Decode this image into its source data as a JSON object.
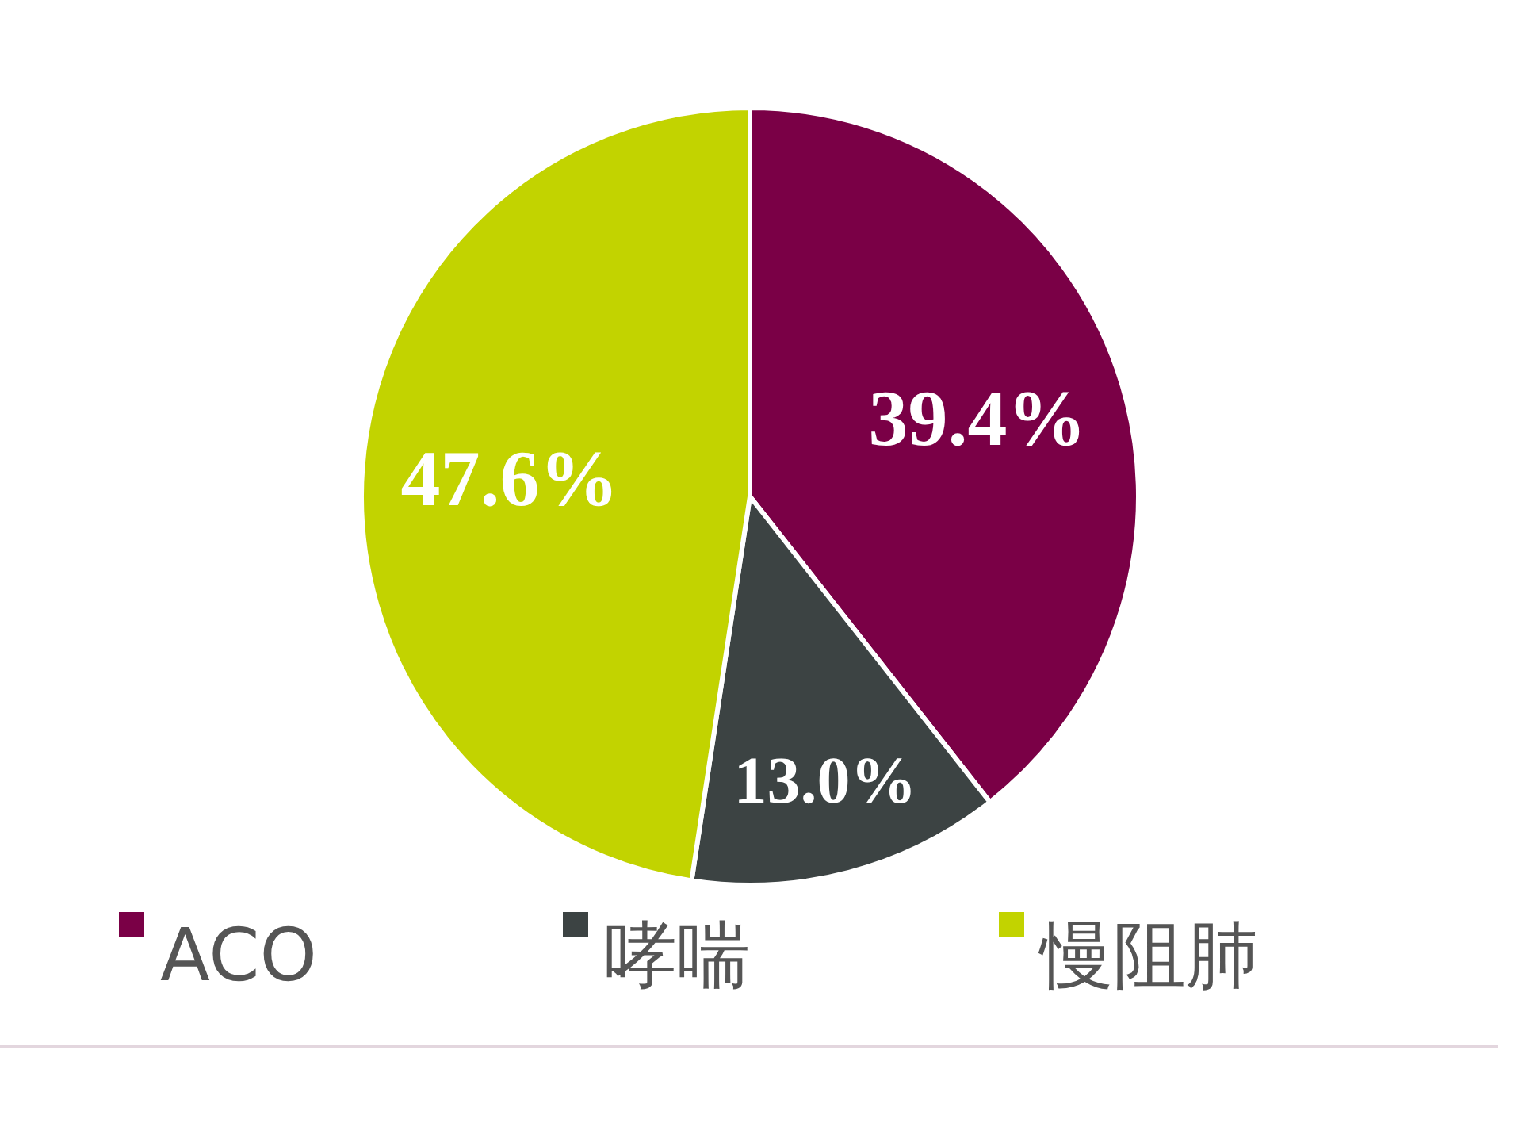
{
  "chart_data": {
    "type": "pie",
    "categories": [
      "ACO",
      "哮喘",
      "慢阻肺"
    ],
    "values": [
      39.4,
      13.0,
      47.6
    ],
    "colors": [
      "#7a0046",
      "#3c4343",
      "#c2d300"
    ],
    "value_labels": [
      "39.4%",
      "13.0%",
      "47.6%"
    ],
    "legend": "bottom"
  }
}
